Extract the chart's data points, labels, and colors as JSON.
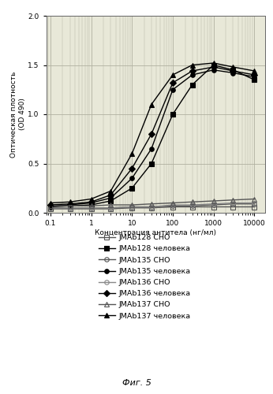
{
  "title": "",
  "xlabel": "Концентрация антитела (нг/мл)",
  "ylabel": "Оптическая плотность\n(OD 490)",
  "caption": "Фиг. 5",
  "ylim": [
    0,
    2.0
  ],
  "yticks": [
    0,
    0.5,
    1.0,
    1.5,
    2.0
  ],
  "series": [
    {
      "label": "JMAb128 CHO",
      "marker": "s",
      "fillstyle": "none",
      "color": "#555555",
      "lw": 1.0,
      "ms": 4,
      "x": [
        0.1,
        0.3,
        1.0,
        3.0,
        10.0,
        30.0,
        100.0,
        300.0,
        1000.0,
        3000.0,
        10000.0
      ],
      "y": [
        0.04,
        0.04,
        0.04,
        0.04,
        0.05,
        0.05,
        0.06,
        0.06,
        0.06,
        0.06,
        0.06
      ]
    },
    {
      "label": "JMAb128 человека",
      "marker": "s",
      "fillstyle": "full",
      "color": "#000000",
      "lw": 1.0,
      "ms": 4,
      "x": [
        0.1,
        0.3,
        1.0,
        3.0,
        10.0,
        30.0,
        100.0,
        300.0,
        1000.0,
        3000.0,
        10000.0
      ],
      "y": [
        0.06,
        0.07,
        0.08,
        0.12,
        0.25,
        0.5,
        1.0,
        1.3,
        1.5,
        1.45,
        1.35
      ]
    },
    {
      "label": "JMAb135 CHO",
      "marker": "o",
      "fillstyle": "none",
      "color": "#555555",
      "lw": 1.0,
      "ms": 4,
      "x": [
        0.1,
        0.3,
        1.0,
        3.0,
        10.0,
        30.0,
        100.0,
        300.0,
        1000.0,
        3000.0,
        10000.0
      ],
      "y": [
        0.05,
        0.05,
        0.05,
        0.05,
        0.06,
        0.06,
        0.07,
        0.07,
        0.08,
        0.09,
        0.09
      ]
    },
    {
      "label": "JMAb135 человека",
      "marker": "o",
      "fillstyle": "full",
      "color": "#000000",
      "lw": 1.0,
      "ms": 4,
      "x": [
        0.1,
        0.3,
        1.0,
        3.0,
        10.0,
        30.0,
        100.0,
        300.0,
        1000.0,
        3000.0,
        10000.0
      ],
      "y": [
        0.07,
        0.08,
        0.1,
        0.15,
        0.35,
        0.65,
        1.25,
        1.4,
        1.45,
        1.42,
        1.38
      ]
    },
    {
      "label": "JMAb136 CHO",
      "marker": "o",
      "fillstyle": "none",
      "color": "#888888",
      "lw": 1.0,
      "ms": 4,
      "x": [
        0.1,
        0.3,
        1.0,
        3.0,
        10.0,
        30.0,
        100.0,
        300.0,
        1000.0,
        3000.0,
        10000.0
      ],
      "y": [
        0.05,
        0.05,
        0.05,
        0.05,
        0.06,
        0.06,
        0.08,
        0.08,
        0.09,
        0.1,
        0.1
      ]
    },
    {
      "label": "JMAb136 человека",
      "marker": "D",
      "fillstyle": "full",
      "color": "#000000",
      "lw": 1.0,
      "ms": 4,
      "x": [
        0.1,
        0.3,
        1.0,
        3.0,
        10.0,
        30.0,
        100.0,
        300.0,
        1000.0,
        3000.0,
        10000.0
      ],
      "y": [
        0.08,
        0.09,
        0.11,
        0.18,
        0.45,
        0.8,
        1.32,
        1.44,
        1.48,
        1.44,
        1.4
      ]
    },
    {
      "label": "JMAb137 CHO",
      "marker": "^",
      "fillstyle": "none",
      "color": "#555555",
      "lw": 1.0,
      "ms": 4,
      "x": [
        0.1,
        0.3,
        1.0,
        3.0,
        10.0,
        30.0,
        100.0,
        300.0,
        1000.0,
        3000.0,
        10000.0
      ],
      "y": [
        0.07,
        0.07,
        0.07,
        0.08,
        0.08,
        0.09,
        0.1,
        0.11,
        0.12,
        0.13,
        0.14
      ]
    },
    {
      "label": "JMAb137 человека",
      "marker": "^",
      "fillstyle": "full",
      "color": "#000000",
      "lw": 1.0,
      "ms": 4,
      "x": [
        0.1,
        0.3,
        1.0,
        3.0,
        10.0,
        30.0,
        100.0,
        300.0,
        1000.0,
        3000.0,
        10000.0
      ],
      "y": [
        0.1,
        0.11,
        0.14,
        0.22,
        0.6,
        1.1,
        1.4,
        1.5,
        1.52,
        1.48,
        1.44
      ]
    }
  ],
  "bg_color": "#e8e8d8",
  "grid_color": "#b0b0a0",
  "xtick_labels": [
    "0.1",
    "1",
    "10",
    "100",
    "1000",
    "10000"
  ],
  "xtick_vals": [
    0.1,
    1.0,
    10.0,
    100.0,
    1000.0,
    10000.0
  ]
}
